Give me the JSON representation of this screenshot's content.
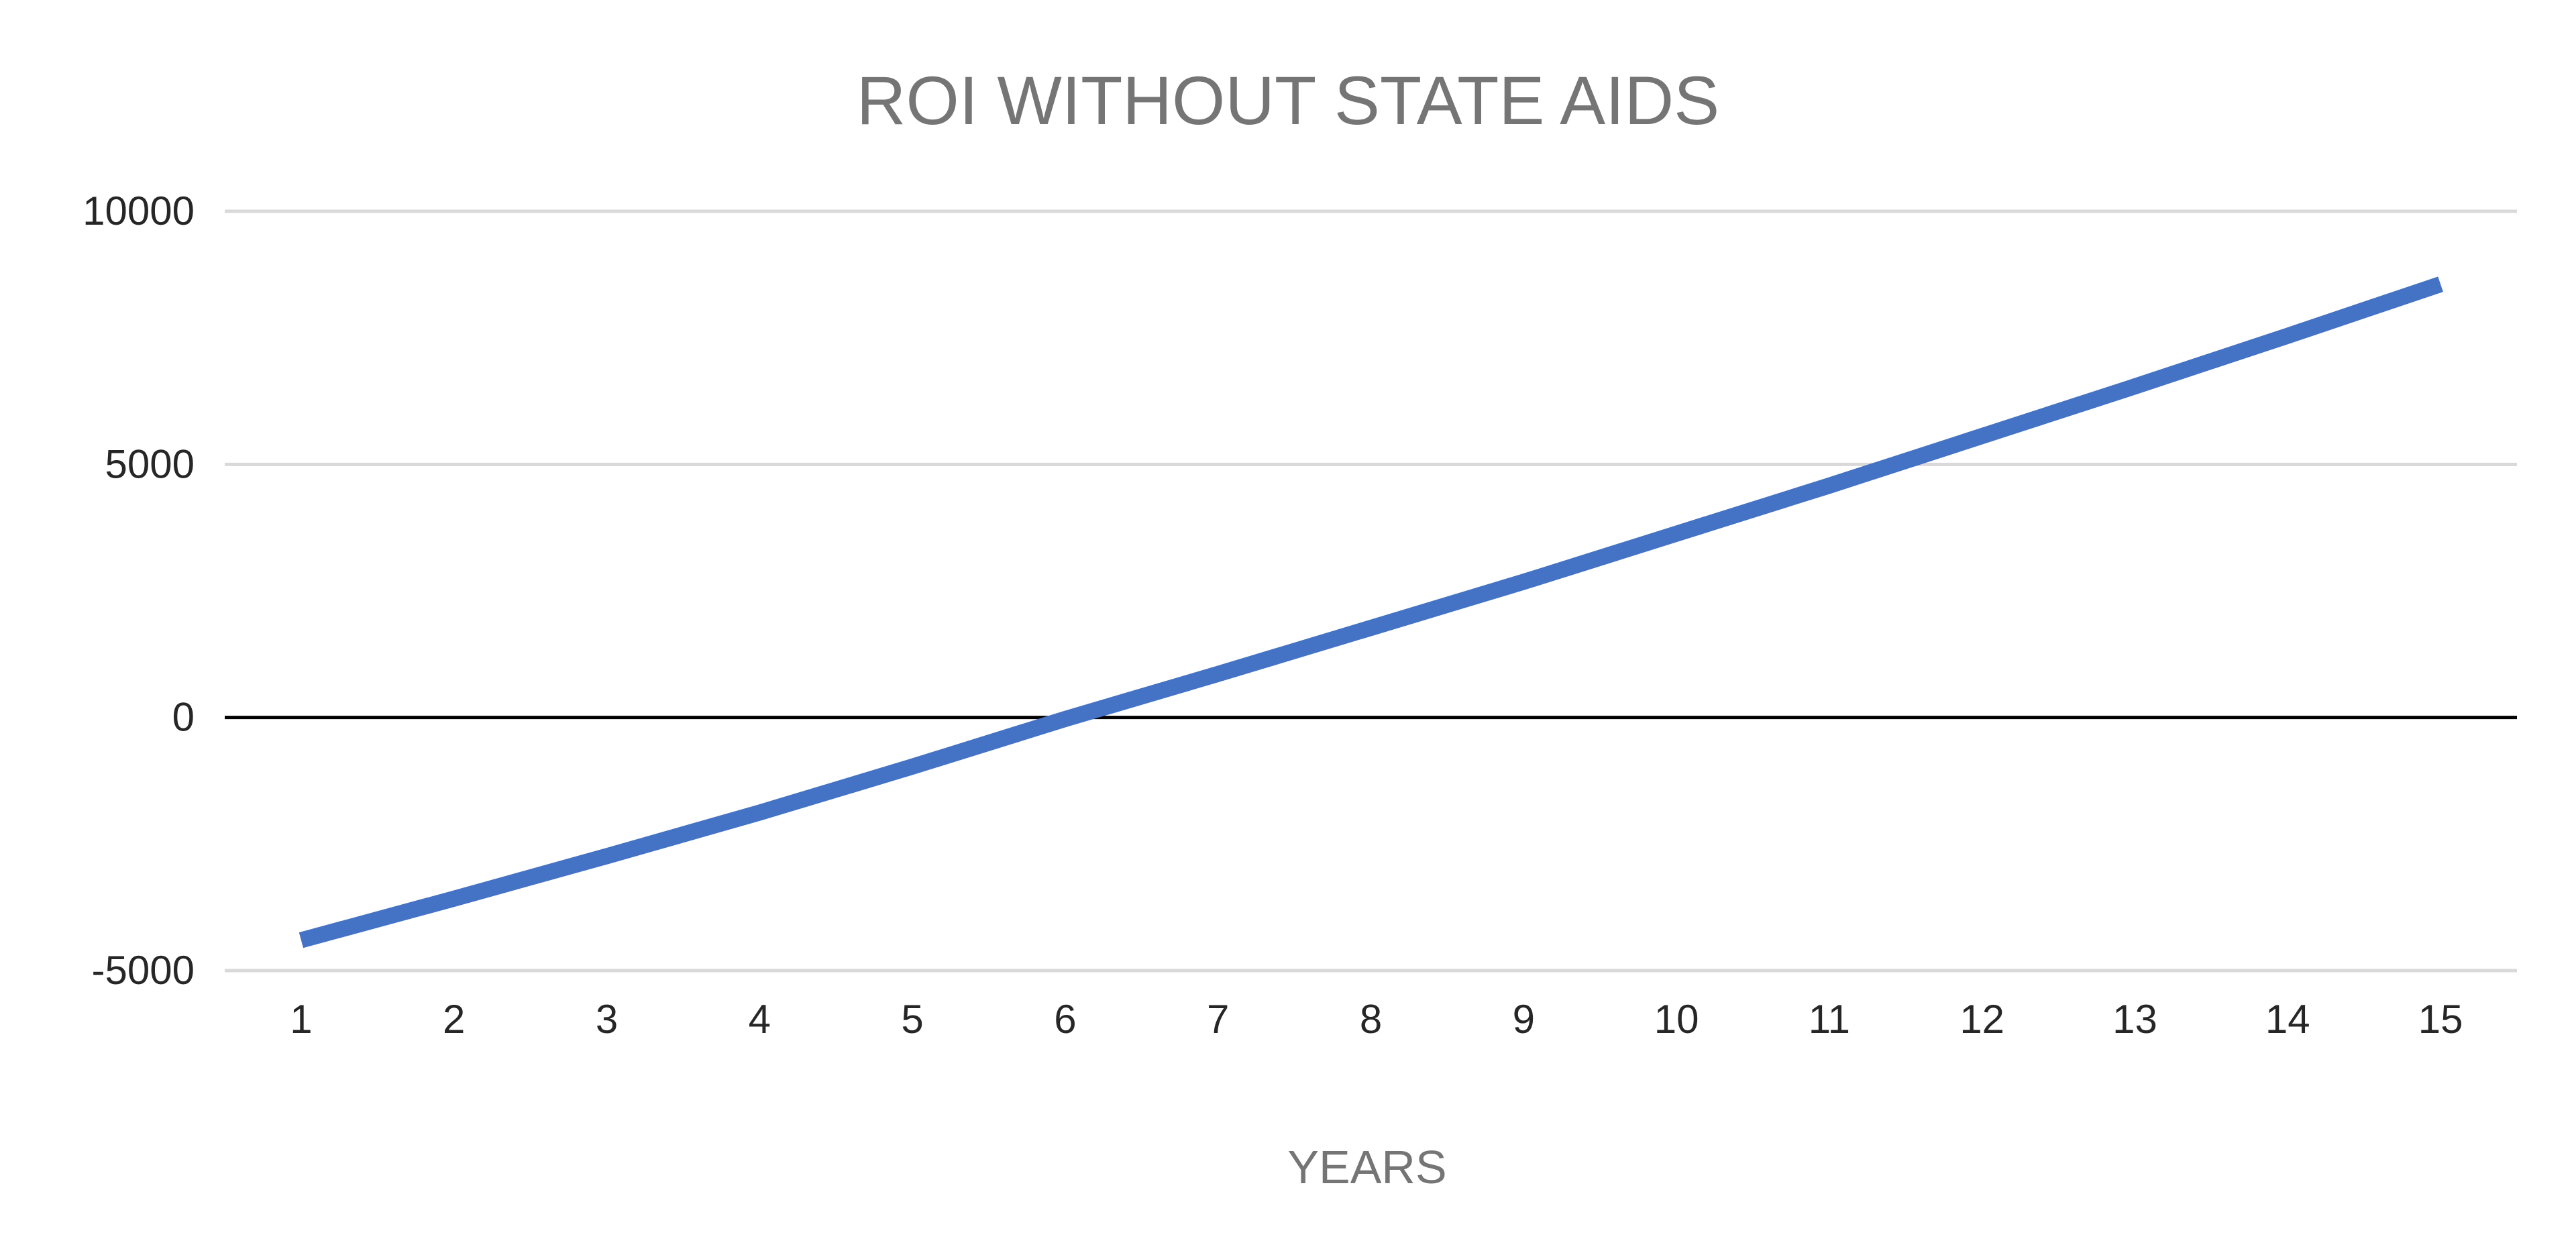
{
  "chart_data": {
    "type": "line",
    "title": "ROI WITHOUT STATE AIDS",
    "xlabel": "YEARS",
    "ylabel": "",
    "categories": [
      "1",
      "2",
      "3",
      "4",
      "5",
      "6",
      "7",
      "8",
      "9",
      "10",
      "11",
      "12",
      "13",
      "14",
      "15"
    ],
    "series": [
      {
        "values": [
          -4400,
          -3580,
          -2740,
          -1880,
          -970,
          -30,
          860,
          1770,
          2680,
          3630,
          4580,
          5560,
          6540,
          7540,
          8560
        ],
        "color": "#4472C4"
      }
    ],
    "ylim": [
      -5000,
      10000
    ],
    "yticks": [
      "10000",
      "5000",
      "0",
      "-5000"
    ],
    "ytick_values": [
      10000,
      5000,
      0,
      -5000
    ],
    "grid": true,
    "legend": "none",
    "colors": {
      "gridline": "#d9d9d9",
      "zero_line": "#000000",
      "series": "#4472C4",
      "title": "#757575",
      "tick_label": "#262626"
    }
  }
}
